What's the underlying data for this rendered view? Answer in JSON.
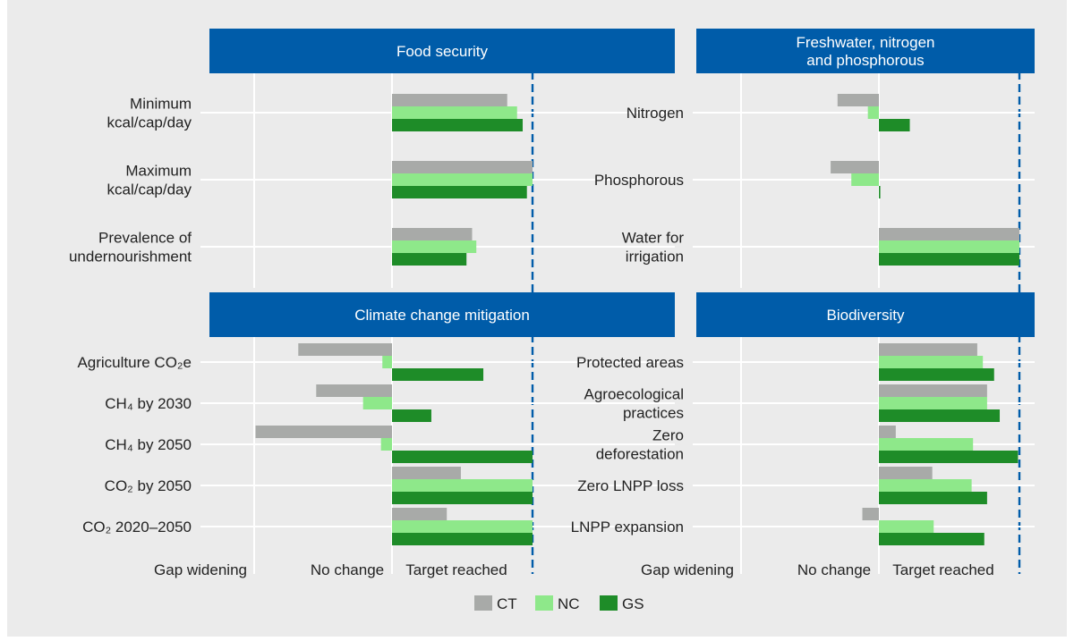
{
  "colors": {
    "background": "#ebebeb",
    "header_fill": "#005ca9",
    "header_text": "#ffffff",
    "grid": "#ffffff",
    "target_line": "#005ca9",
    "CT": "#a8aaa8",
    "NC": "#8ee88a",
    "GS": "#1e8c28"
  },
  "legend": {
    "items": [
      {
        "key": "CT",
        "label": "CT"
      },
      {
        "key": "NC",
        "label": "NC"
      },
      {
        "key": "GS",
        "label": "GS"
      }
    ],
    "placement": "bottom-center"
  },
  "chart_data": [
    {
      "type": "bar",
      "orientation": "horizontal",
      "title": "Food security",
      "scale_labels": [
        "Gap widening",
        "No change",
        "Target reached"
      ],
      "xlim": [
        -1,
        1
      ],
      "categories": [
        "Minimum kcal/cap/day",
        "Maximum kcal/cap/day",
        "Prevalence of undernourishment"
      ],
      "series": [
        {
          "name": "CT",
          "values": [
            0.82,
            1.0,
            0.57
          ]
        },
        {
          "name": "NC",
          "values": [
            0.89,
            1.0,
            0.6
          ]
        },
        {
          "name": "GS",
          "values": [
            0.93,
            0.96,
            0.53
          ]
        }
      ]
    },
    {
      "type": "bar",
      "orientation": "horizontal",
      "title": "Freshwater, nitrogen and phosphorous",
      "scale_labels": [
        "Gap widening",
        "No change",
        "Target reached"
      ],
      "xlim": [
        -1,
        1
      ],
      "categories": [
        "Nitrogen",
        "Phosphorous",
        "Water for irrigation"
      ],
      "series": [
        {
          "name": "CT",
          "values": [
            -0.3,
            -0.35,
            1.0
          ]
        },
        {
          "name": "NC",
          "values": [
            -0.08,
            -0.2,
            1.0
          ]
        },
        {
          "name": "GS",
          "values": [
            0.22,
            0.01,
            1.0
          ]
        }
      ]
    },
    {
      "type": "bar",
      "orientation": "horizontal",
      "title": "Climate change mitigation",
      "scale_labels": [
        "Gap widening",
        "No change",
        "Target reached"
      ],
      "xlim": [
        -1,
        1
      ],
      "categories": [
        "Agriculture CO₂e",
        "CH₄ by 2030",
        "CH₄ by 2050",
        "CO₂ by 2050",
        "CO₂ 2020–2050"
      ],
      "series": [
        {
          "name": "CT",
          "values": [
            -0.68,
            -0.55,
            -0.99,
            0.49,
            0.39
          ]
        },
        {
          "name": "NC",
          "values": [
            -0.07,
            -0.21,
            -0.08,
            1.0,
            1.0
          ]
        },
        {
          "name": "GS",
          "values": [
            0.65,
            0.28,
            1.0,
            1.0,
            1.0
          ]
        }
      ]
    },
    {
      "type": "bar",
      "orientation": "horizontal",
      "title": "Biodiversity",
      "scale_labels": [
        "Gap widening",
        "No change",
        "Target reached"
      ],
      "xlim": [
        -1,
        1
      ],
      "categories": [
        "Protected areas",
        "Agroecological practices",
        "Zero deforestation",
        "Zero LNPP loss",
        "LNPP expansion"
      ],
      "series": [
        {
          "name": "CT",
          "values": [
            0.7,
            0.77,
            0.12,
            0.38,
            -0.12
          ]
        },
        {
          "name": "NC",
          "values": [
            0.74,
            0.77,
            0.67,
            0.66,
            0.39
          ]
        },
        {
          "name": "GS",
          "values": [
            0.82,
            0.86,
            0.99,
            0.77,
            0.75
          ]
        }
      ]
    }
  ]
}
